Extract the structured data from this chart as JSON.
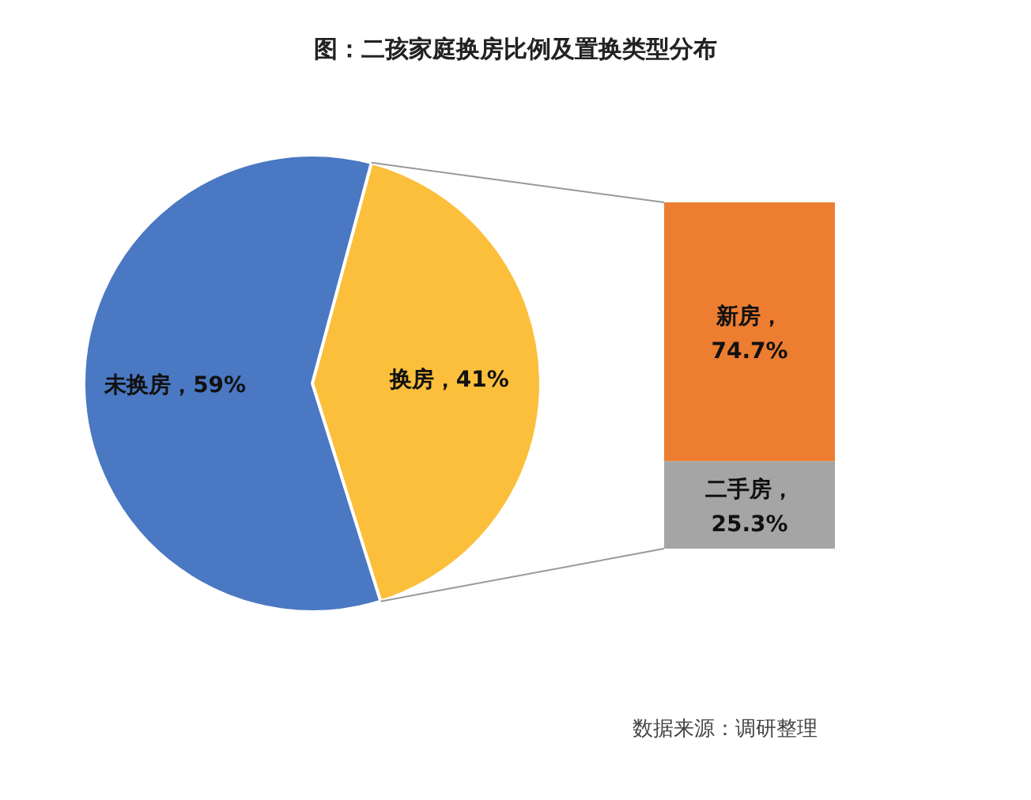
{
  "chart_data": [
    {
      "type": "pie",
      "title": "图：二孩家庭换房比例及置换类型分布",
      "categories": [
        "换房",
        "未换房"
      ],
      "values": [
        41,
        59
      ],
      "value_labels": [
        "41%",
        "59%"
      ],
      "colors": [
        "#fbbf3b",
        "#4a78c2"
      ],
      "legend": false,
      "annotations": [
        "数据来源：调研整理"
      ]
    },
    {
      "type": "bar",
      "stacked": true,
      "categories": [
        null
      ],
      "series": [
        {
          "name": "二手房，",
          "color": "#a5a5a5",
          "values": [
            25.3
          ],
          "value_labels": [
            "25.3%"
          ]
        },
        {
          "name": "新房，",
          "color": "#ed7d31",
          "values": [
            74.7
          ],
          "value_labels": [
            "74.7%"
          ]
        }
      ],
      "legend": false,
      "tick_labels": false
    }
  ]
}
